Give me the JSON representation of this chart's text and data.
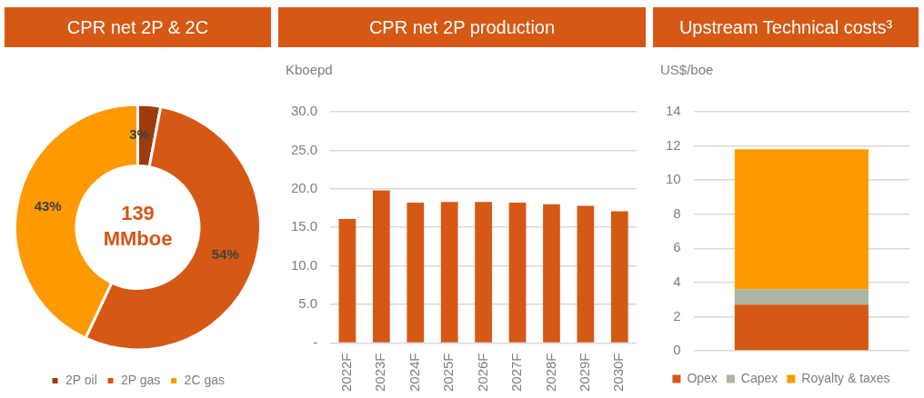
{
  "chart_data": [
    {
      "type": "donut",
      "title": "CPR net 2P & 2C",
      "categories": [
        "2P oil",
        "2P gas",
        "2C gas"
      ],
      "values": [
        3,
        54,
        43
      ],
      "colors": [
        "#9c3c0e",
        "#d55815",
        "#fe9900"
      ],
      "value_labels": [
        "3%",
        "54%",
        "43%"
      ],
      "legend": "bottom",
      "annotations": [
        "139 MMboe"
      ]
    },
    {
      "type": "bar",
      "title": "CPR net 2P production",
      "ylabel": "Kboepd",
      "categories": [
        "2022F",
        "2023F",
        "2024F",
        "2025F",
        "2026F",
        "2027F",
        "2028F",
        "2029F",
        "2030F"
      ],
      "values": [
        16.1,
        19.8,
        18.2,
        18.3,
        18.3,
        18.2,
        18.0,
        17.8,
        17.1
      ],
      "color": "#d55815",
      "ylim": [
        0,
        30
      ],
      "yticks": [
        {
          "value": 0,
          "label": "-"
        },
        {
          "value": 5,
          "label": "5.0"
        },
        {
          "value": 10,
          "label": "10.0"
        },
        {
          "value": 15,
          "label": "15.0"
        },
        {
          "value": 20,
          "label": "20.0"
        },
        {
          "value": 25,
          "label": "25.0"
        },
        {
          "value": 30,
          "label": "30.0"
        }
      ],
      "grid": "y"
    },
    {
      "type": "bar",
      "title": "Upstream Technical costs³",
      "ylabel": "US$/boe",
      "categories": [
        null
      ],
      "stacked": true,
      "series": [
        {
          "name": "Opex",
          "color": "#d55815",
          "values": [
            2.7
          ]
        },
        {
          "name": "Capex",
          "color": "#adb5a3",
          "values": [
            0.9
          ]
        },
        {
          "name": "Royalty & taxes",
          "color": "#fe9900",
          "values": [
            8.2
          ]
        }
      ],
      "ylim": [
        0,
        14
      ],
      "yticks": [
        0,
        2,
        4,
        6,
        8,
        10,
        12,
        14
      ],
      "grid": "y",
      "legend": "bottom"
    }
  ]
}
